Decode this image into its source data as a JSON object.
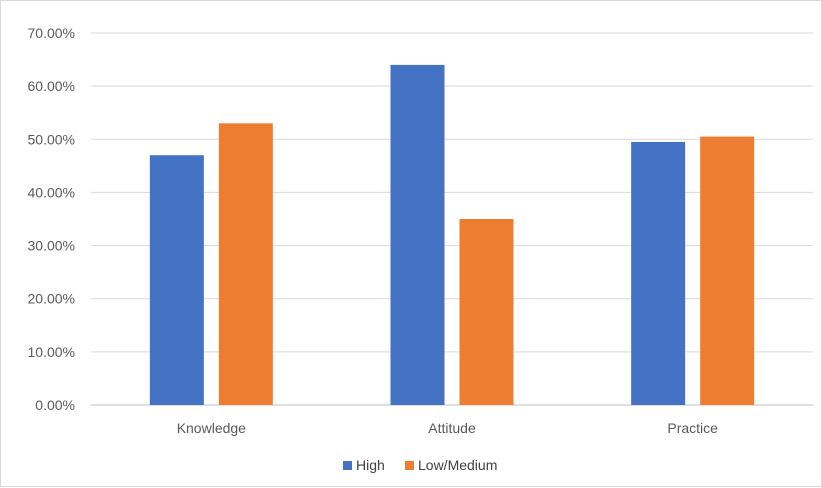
{
  "chart_data": {
    "type": "bar",
    "title": "",
    "xlabel": "",
    "ylabel": "",
    "categories": [
      "Knowledge",
      "Attitude",
      "Practice"
    ],
    "series": [
      {
        "name": "High",
        "color": "#4472C4",
        "values": [
          47.0,
          64.0,
          49.5
        ]
      },
      {
        "name": "Low/Medium",
        "color": "#ED7D31",
        "values": [
          53.0,
          35.0,
          50.5
        ]
      }
    ],
    "ylim": [
      0,
      70
    ],
    "yticks": [
      "0.00%",
      "10.00%",
      "20.00%",
      "30.00%",
      "40.00%",
      "50.00%",
      "60.00%",
      "70.00%"
    ],
    "grid": true,
    "legend_position": "bottom"
  }
}
